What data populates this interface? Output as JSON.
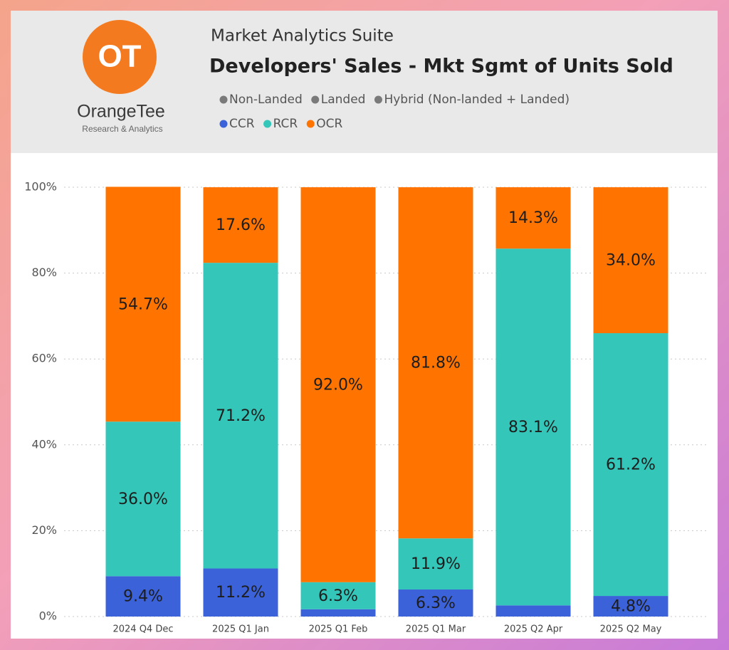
{
  "logo": {
    "mark": "OT",
    "name": "OrangeTee",
    "tagline": "Research & Analytics"
  },
  "chart_data": {
    "type": "stacked_bar",
    "subtitle": "Market Analytics Suite",
    "title": "Developers' Sales - Mkt Sgmt of Units Sold",
    "filters": [
      "Non-Landed",
      "Landed",
      "Hybrid (Non-landed + Landed)"
    ],
    "filter_color": "#7a7a7a",
    "categories": [
      "2024 Q4 Dec",
      "2025 Q1 Jan",
      "2025 Q1 Feb",
      "2025 Q1 Mar",
      "2025 Q2 Apr",
      "2025 Q2 May"
    ],
    "series": [
      {
        "name": "CCR",
        "color": "#3b62d9",
        "values": [
          9.4,
          11.2,
          1.7,
          6.3,
          2.6,
          4.8
        ],
        "value_labels": [
          "9.4%",
          "11.2%",
          null,
          "6.3%",
          null,
          "4.8%"
        ]
      },
      {
        "name": "RCR",
        "color": "#33c6b9",
        "values": [
          36.0,
          71.2,
          6.3,
          11.9,
          83.1,
          61.2
        ],
        "value_labels": [
          "36.0%",
          "71.2%",
          "6.3%",
          "11.9%",
          "83.1%",
          "61.2%"
        ]
      },
      {
        "name": "OCR",
        "color": "#ff7400",
        "values": [
          54.7,
          17.6,
          92.0,
          81.8,
          14.3,
          34.0
        ],
        "value_labels": [
          "54.7%",
          "17.6%",
          "92.0%",
          "81.8%",
          "14.3%",
          "34.0%"
        ]
      }
    ],
    "ylim": [
      0,
      100
    ],
    "yticks": [
      {
        "value": 0,
        "label": "0%"
      },
      {
        "value": 20,
        "label": "20%"
      },
      {
        "value": 40,
        "label": "40%"
      },
      {
        "value": 60,
        "label": "60%"
      },
      {
        "value": 80,
        "label": "80%"
      },
      {
        "value": 100,
        "label": "100%"
      }
    ],
    "grid": true
  }
}
